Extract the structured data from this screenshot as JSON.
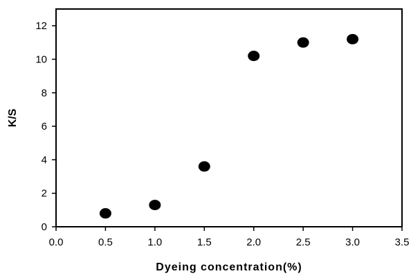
{
  "chart_data": {
    "type": "scatter",
    "title": "",
    "xlabel": "Dyeing concentration(%)",
    "ylabel": "K/S",
    "xlim": [
      0.0,
      3.5
    ],
    "ylim": [
      0,
      13
    ],
    "xticks": [
      "0.0",
      "0.5",
      "1.0",
      "1.5",
      "2.0",
      "2.5",
      "3.0",
      "3.5"
    ],
    "yticks": [
      "0",
      "2",
      "4",
      "6",
      "8",
      "10",
      "12"
    ],
    "grid": false,
    "legend": "none",
    "marker_color": "#000000",
    "series": [
      {
        "x": [
          0.5,
          1.0,
          1.5,
          2.0,
          2.5,
          3.0
        ],
        "y": [
          0.8,
          1.3,
          3.6,
          10.2,
          11.0,
          11.2
        ]
      }
    ]
  }
}
